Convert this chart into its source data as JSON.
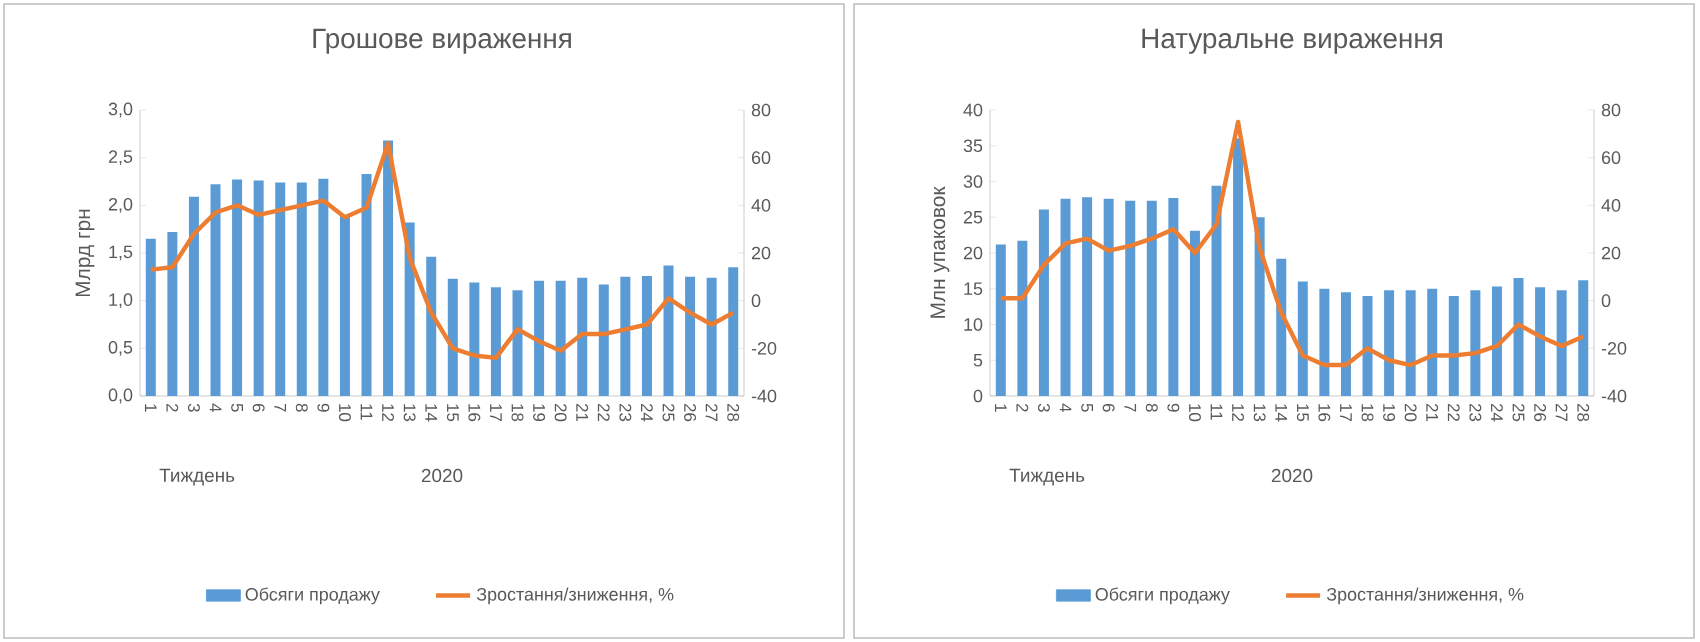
{
  "chart_data": [
    {
      "type": "bar",
      "title": "Грошове вираження",
      "ylabel": "Млрд грн",
      "xlabel": "2020",
      "annotations": [
        "Тиждень"
      ],
      "legend": "bottom",
      "categories": [
        "1",
        "2",
        "3",
        "4",
        "5",
        "6",
        "7",
        "8",
        "9",
        "10",
        "11",
        "12",
        "13",
        "14",
        "15",
        "16",
        "17",
        "18",
        "19",
        "20",
        "21",
        "22",
        "23",
        "24",
        "25",
        "26",
        "27",
        "28"
      ],
      "series": [
        {
          "name": "Обсяги продажу",
          "color": "#5b9bd5",
          "values": [
            1.65,
            1.72,
            2.09,
            2.22,
            2.27,
            2.26,
            2.24,
            2.24,
            2.28,
            1.9,
            2.33,
            2.68,
            1.82,
            1.46,
            1.23,
            1.19,
            1.14,
            1.11,
            1.21,
            1.21,
            1.24,
            1.17,
            1.25,
            1.26,
            1.37,
            1.25,
            1.24,
            1.35
          ]
        },
        {
          "name": "Зростання/зниження, %",
          "type": "line",
          "axis": "y2",
          "color": "#ed7d31",
          "values": [
            13,
            14,
            28,
            37,
            40,
            36,
            38,
            40,
            42,
            35,
            39,
            66,
            18,
            -5,
            -20,
            -23,
            -24,
            -12,
            -17,
            -21,
            -14,
            -14,
            -12,
            -10,
            1,
            -5,
            -10,
            -5
          ]
        }
      ],
      "ylim": [
        0,
        3
      ],
      "yticks": [
        {
          "value": 0,
          "label": "0,0"
        },
        {
          "value": 0.5,
          "label": "0,5"
        },
        {
          "value": 1,
          "label": "1,0"
        },
        {
          "value": 1.5,
          "label": "1,5"
        },
        {
          "value": 2,
          "label": "2,0"
        },
        {
          "value": 2.5,
          "label": "2,5"
        },
        {
          "value": 3,
          "label": "3,0"
        }
      ],
      "y2lim": [
        -40,
        80
      ],
      "y2ticks": [
        -40,
        -20,
        0,
        20,
        40,
        60,
        80
      ]
    },
    {
      "type": "bar",
      "title": "Натуральне вираження",
      "ylabel": "Млн упаковок",
      "xlabel": "2020",
      "annotations": [
        "Тиждень"
      ],
      "legend": "bottom",
      "categories": [
        "1",
        "2",
        "3",
        "4",
        "5",
        "6",
        "7",
        "8",
        "9",
        "10",
        "11",
        "12",
        "13",
        "14",
        "15",
        "16",
        "17",
        "18",
        "19",
        "20",
        "21",
        "22",
        "23",
        "24",
        "25",
        "26",
        "27",
        "28"
      ],
      "series": [
        {
          "name": "Обсяги продажу",
          "color": "#5b9bd5",
          "values": [
            21.2,
            21.7,
            26.1,
            27.6,
            27.8,
            27.6,
            27.3,
            27.3,
            27.7,
            23.1,
            29.4,
            36,
            25,
            19.2,
            16,
            15,
            14.5,
            14,
            14.8,
            14.8,
            15,
            14,
            14.8,
            15.3,
            16.5,
            15.2,
            14.8,
            16.2
          ]
        },
        {
          "name": "Зростання/зниження, %",
          "type": "line",
          "axis": "y2",
          "color": "#ed7d31",
          "values": [
            1,
            1,
            15,
            24,
            26,
            21,
            23,
            26,
            30,
            20,
            32,
            75,
            22,
            -5,
            -23,
            -27,
            -27,
            -20,
            -25,
            -27,
            -23,
            -23,
            -22,
            -19,
            -10,
            -15,
            -19,
            -15
          ]
        }
      ],
      "ylim": [
        0,
        40
      ],
      "yticks": [
        0,
        5,
        10,
        15,
        20,
        25,
        30,
        35,
        40
      ],
      "y2lim": [
        -40,
        80
      ],
      "y2ticks": [
        -40,
        -20,
        0,
        20,
        40,
        60,
        80
      ]
    }
  ]
}
